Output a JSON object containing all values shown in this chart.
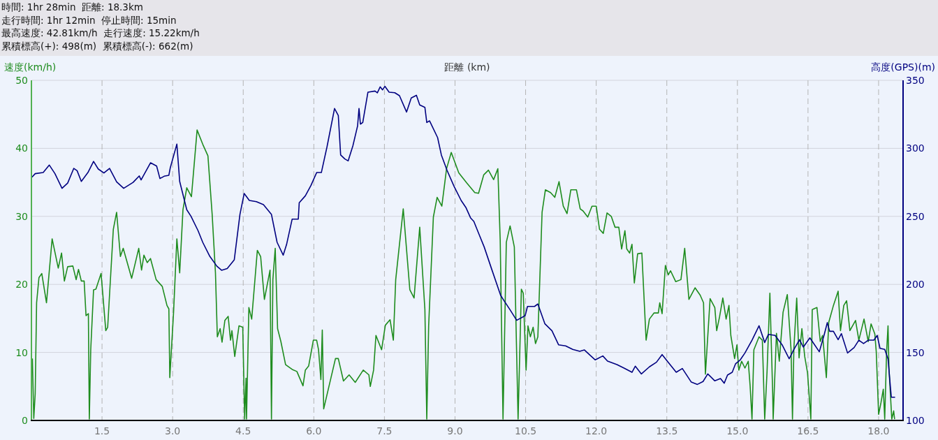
{
  "chart_data": {
    "type": "line",
    "annotations": [
      "時間: 1hr 28min  距離: 18.3km",
      "走行時間: 1hr 12min  停止時間: 15min",
      "最高速度: 42.81km/h  走行速度: 15.22km/h",
      "累積標高(+): 498(m)  累積標高(-): 662(m)"
    ],
    "xlabel": "距離 (km)",
    "ylabel": "速度(km/h)",
    "y2label": "高度(GPS)(m)",
    "xlim": [
      0,
      18.52
    ],
    "ylim": [
      0,
      50
    ],
    "y2lim": [
      100,
      350
    ],
    "xticks": [
      {
        "value": 1.5,
        "label": "1.5"
      },
      {
        "value": 3,
        "label": "3.0"
      },
      {
        "value": 4.5,
        "label": "4.5"
      },
      {
        "value": 6,
        "label": "6.0"
      },
      {
        "value": 7.5,
        "label": "7.5"
      },
      {
        "value": 9,
        "label": "9.0"
      },
      {
        "value": 10.5,
        "label": "10.5"
      },
      {
        "value": 12,
        "label": "12.0"
      },
      {
        "value": 13.5,
        "label": "13.5"
      },
      {
        "value": 15,
        "label": "15.0"
      },
      {
        "value": 16.5,
        "label": "16.5"
      },
      {
        "value": 18,
        "label": "18.0"
      }
    ],
    "yticks": [
      0,
      10,
      20,
      30,
      40,
      50
    ],
    "y2ticks": [
      100,
      150,
      200,
      250,
      300,
      350
    ],
    "grid": true,
    "series": [
      {
        "color": "#1e8c1e",
        "axis": "y",
        "x": [
          0.02,
          0.05,
          0.08,
          0.11,
          0.16,
          0.22,
          0.32,
          0.44,
          0.57,
          0.64,
          0.7,
          0.77,
          0.88,
          0.95,
          1.0,
          1.06,
          1.12,
          1.16,
          1.21,
          1.23,
          1.26,
          1.32,
          1.37,
          1.48,
          1.58,
          1.62,
          1.74,
          1.81,
          1.89,
          1.95,
          2.13,
          2.28,
          2.34,
          2.39,
          2.46,
          2.53,
          2.65,
          2.78,
          2.88,
          2.92,
          2.94,
          3.02,
          3.09,
          3.15,
          3.22,
          3.3,
          3.4,
          3.52,
          3.64,
          3.75,
          3.84,
          3.91,
          3.95,
          4.01,
          4.05,
          4.11,
          4.18,
          4.23,
          4.26,
          4.32,
          4.41,
          4.49,
          4.53,
          4.56,
          4.57,
          4.62,
          4.68,
          4.8,
          4.87,
          4.95,
          5.07,
          5.1,
          5.13,
          5.18,
          5.23,
          5.3,
          5.4,
          5.54,
          5.64,
          5.77,
          5.82,
          5.89,
          5.99,
          6.06,
          6.1,
          6.15,
          6.18,
          6.21,
          6.46,
          6.52,
          6.63,
          6.75,
          6.88,
          7.05,
          7.17,
          7.2,
          7.27,
          7.32,
          7.44,
          7.52,
          7.62,
          7.69,
          7.74,
          7.9,
          8.04,
          8.13,
          8.25,
          8.36,
          8.4,
          8.44,
          8.54,
          8.62,
          8.72,
          8.82,
          8.92,
          9.08,
          9.25,
          9.42,
          9.5,
          9.61,
          9.71,
          9.82,
          9.91,
          9.96,
          10.02,
          10.09,
          10.17,
          10.26,
          10.34,
          10.41,
          10.45,
          10.51,
          10.55,
          10.6,
          10.66,
          10.71,
          10.76,
          10.85,
          10.92,
          11.03,
          11.12,
          11.21,
          11.3,
          11.38,
          11.46,
          11.58,
          11.66,
          11.72,
          11.82,
          11.91,
          12.0,
          12.07,
          12.15,
          12.23,
          12.32,
          12.4,
          12.48,
          12.54,
          12.61,
          12.65,
          12.71,
          12.76,
          12.81,
          12.88,
          12.97,
          13.06,
          13.13,
          13.23,
          13.32,
          13.35,
          13.4,
          13.47,
          13.53,
          13.58,
          13.69,
          13.8,
          13.88,
          13.97,
          14.1,
          14.21,
          14.28,
          14.32,
          14.42,
          14.52,
          14.56,
          14.62,
          14.69,
          14.76,
          14.82,
          14.86,
          14.94,
          14.99,
          15.03,
          15.09,
          15.16,
          15.23,
          15.27,
          15.31,
          15.35,
          15.46,
          15.53,
          15.58,
          15.63,
          15.69,
          15.75,
          15.76,
          15.83,
          15.89,
          15.97,
          16.06,
          16.14,
          16.17,
          16.2,
          16.26,
          16.31,
          16.37,
          16.43,
          16.49,
          16.56,
          16.59,
          16.69,
          16.76,
          16.81,
          16.89,
          16.94,
          17.04,
          17.14,
          17.19,
          17.26,
          17.32,
          17.39,
          17.51,
          17.58,
          17.69,
          17.78,
          17.84,
          17.92,
          17.95,
          18.0,
          18.05,
          18.1,
          18.13,
          18.17,
          18.2,
          18.22,
          18.28,
          18.32,
          18.34
        ],
        "values": [
          9.1,
          0.3,
          3.9,
          17.3,
          21.0,
          21.6,
          17.3,
          26.7,
          22.4,
          24.6,
          20.5,
          22.6,
          22.7,
          20.7,
          22.2,
          20.5,
          20.5,
          15.4,
          15.7,
          0.2,
          10.4,
          19.2,
          19.3,
          21.6,
          13.2,
          13.7,
          28.1,
          30.6,
          24.1,
          25.3,
          20.9,
          25.3,
          22.1,
          24.3,
          23.2,
          23.8,
          20.7,
          19.7,
          16.9,
          16.4,
          6.3,
          15.9,
          26.7,
          21.7,
          31.0,
          34.2,
          32.9,
          42.7,
          40.6,
          38.9,
          30.3,
          21.7,
          12.3,
          13.5,
          11.5,
          14.7,
          15.3,
          11.8,
          13.2,
          9.4,
          13.9,
          13.7,
          0.2,
          6.2,
          0.2,
          16.6,
          14.9,
          25.0,
          24.1,
          17.8,
          22.1,
          0.2,
          20.7,
          25.3,
          13.5,
          11.6,
          8.2,
          7.5,
          7.2,
          5.1,
          7.4,
          8.0,
          11.8,
          11.8,
          10.4,
          6.0,
          13.3,
          1.7,
          9.1,
          9.1,
          5.8,
          6.7,
          5.6,
          7.4,
          6.7,
          5.0,
          7.4,
          12.5,
          10.4,
          14.0,
          14.8,
          11.8,
          20.7,
          31.1,
          19.2,
          18.0,
          28.4,
          16.3,
          0.2,
          13.9,
          29.9,
          32.8,
          31.5,
          37.0,
          39.4,
          36.4,
          34.9,
          33.5,
          33.4,
          36.1,
          36.8,
          35.4,
          37.0,
          26.5,
          0.2,
          26.2,
          28.6,
          25.5,
          0.2,
          19.3,
          18.7,
          7.4,
          13.9,
          12.3,
          13.7,
          11.3,
          12.3,
          30.6,
          33.9,
          33.5,
          32.8,
          35.1,
          31.5,
          30.4,
          33.9,
          33.9,
          31.1,
          30.8,
          29.9,
          31.5,
          31.5,
          28.1,
          27.5,
          30.5,
          30.0,
          28.4,
          28.4,
          25.2,
          27.9,
          25.2,
          24.6,
          25.9,
          20.2,
          24.5,
          24.6,
          11.8,
          14.9,
          15.8,
          15.8,
          17.3,
          15.7,
          22.8,
          21.4,
          22.0,
          20.4,
          20.7,
          25.3,
          17.8,
          19.5,
          18.4,
          17.3,
          6.8,
          17.9,
          16.6,
          13.2,
          15.2,
          18.0,
          14.9,
          16.9,
          12.5,
          9.1,
          11.1,
          7.4,
          8.7,
          7.7,
          8.7,
          5.1,
          0.2,
          10.4,
          12.3,
          11.8,
          0.2,
          7.2,
          18.7,
          3.9,
          0.2,
          12.8,
          8.7,
          15.9,
          18.5,
          10.4,
          0.2,
          10.6,
          18.0,
          9.2,
          13.5,
          9.4,
          7.0,
          0.2,
          16.3,
          16.6,
          11.6,
          12.5,
          6.3,
          14.4,
          16.9,
          19.0,
          13.2,
          16.9,
          17.6,
          13.2,
          14.7,
          11.8,
          14.9,
          11.6,
          14.2,
          12.7,
          10.1,
          0.9,
          2.6,
          4.6,
          0.2,
          10.1,
          13.9,
          7.7,
          0.2,
          1.4,
          0.2
        ]
      },
      {
        "color": "#000080",
        "axis": "y2",
        "x": [
          0.01,
          0.08,
          0.25,
          0.38,
          0.5,
          0.65,
          0.77,
          0.9,
          0.97,
          1.06,
          1.2,
          1.32,
          1.42,
          1.54,
          1.66,
          1.81,
          1.96,
          2.16,
          2.29,
          2.33,
          2.53,
          2.66,
          2.73,
          2.82,
          2.92,
          2.95,
          3.09,
          3.15,
          3.3,
          3.39,
          3.54,
          3.64,
          3.79,
          3.94,
          4.04,
          4.16,
          4.31,
          4.43,
          4.52,
          4.63,
          4.78,
          4.93,
          5.1,
          5.22,
          5.35,
          5.42,
          5.54,
          5.67,
          5.69,
          5.82,
          5.94,
          6.06,
          6.16,
          6.28,
          6.44,
          6.52,
          6.57,
          6.66,
          6.73,
          6.83,
          6.93,
          6.96,
          6.99,
          7.04,
          7.15,
          7.3,
          7.35,
          7.41,
          7.46,
          7.51,
          7.6,
          7.72,
          7.82,
          7.97,
          8.07,
          8.18,
          8.25,
          8.36,
          8.4,
          8.46,
          8.63,
          8.71,
          8.83,
          8.98,
          9.13,
          9.23,
          9.33,
          9.4,
          9.5,
          9.62,
          9.77,
          9.97,
          10.04,
          10.17,
          10.31,
          10.49,
          10.54,
          10.69,
          10.76,
          10.91,
          11.06,
          11.2,
          11.35,
          11.5,
          11.65,
          11.75,
          11.87,
          11.98,
          12.14,
          12.24,
          12.44,
          12.59,
          12.76,
          12.83,
          12.96,
          13.13,
          13.28,
          13.4,
          13.53,
          13.7,
          13.83,
          14.02,
          14.15,
          14.27,
          14.37,
          14.52,
          14.64,
          14.72,
          14.79,
          14.89,
          14.96,
          15.06,
          15.16,
          15.31,
          15.46,
          15.58,
          15.66,
          15.8,
          15.95,
          16.1,
          16.2,
          16.32,
          16.4,
          16.54,
          16.74,
          16.84,
          16.91,
          16.96,
          17.04,
          17.14,
          17.21,
          17.34,
          17.48,
          17.58,
          17.68,
          17.78,
          17.9,
          17.97,
          18.03,
          18.13,
          18.2,
          18.25,
          18.27,
          18.35
        ],
        "values": [
          278.8,
          281.4,
          282.2,
          287.7,
          281.4,
          270.6,
          274.5,
          285.3,
          283.6,
          275.7,
          282.2,
          290.4,
          284.8,
          281.9,
          285.3,
          275.4,
          270.6,
          275.0,
          279.7,
          276.8,
          289.4,
          287.0,
          277.8,
          279.5,
          280.2,
          285.7,
          303.1,
          275.7,
          254.9,
          250.1,
          239.5,
          230.9,
          220.6,
          213.4,
          210.4,
          211.7,
          218.1,
          251.4,
          266.8,
          261.7,
          260.8,
          258.6,
          251.4,
          230.9,
          221.5,
          229.2,
          248.0,
          248.0,
          260.0,
          265.1,
          272.8,
          282.2,
          282.2,
          301.1,
          329.3,
          324.2,
          295.1,
          292.2,
          290.8,
          301.9,
          316.5,
          329.3,
          317.8,
          319.0,
          341.3,
          342.1,
          340.8,
          345.2,
          343.0,
          345.6,
          341.3,
          340.9,
          338.7,
          326.7,
          337.0,
          339.0,
          331.9,
          330.1,
          319.0,
          320.2,
          307.9,
          295.1,
          283.9,
          272.0,
          261.7,
          256.6,
          248.9,
          246.3,
          237.7,
          227.5,
          212.1,
          191.9,
          188.1,
          181.3,
          173.6,
          177.0,
          183.8,
          183.8,
          185.6,
          171.0,
          165.9,
          155.6,
          154.8,
          152.2,
          150.8,
          151.8,
          147.9,
          144.5,
          147.4,
          143.6,
          141.1,
          138.5,
          135.4,
          139.9,
          134.2,
          139.4,
          142.8,
          148.4,
          142.8,
          135.4,
          138.2,
          128.2,
          126.5,
          128.6,
          134.2,
          129.1,
          130.8,
          127.4,
          133.4,
          135.4,
          141.6,
          144.5,
          149.6,
          159.0,
          169.6,
          157.3,
          163.3,
          162.5,
          155.6,
          145.3,
          152.2,
          159.4,
          153.9,
          160.7,
          150.5,
          162.5,
          171.9,
          165.5,
          165.5,
          159.4,
          163.8,
          149.6,
          153.6,
          159.0,
          156.5,
          159.0,
          159.0,
          162.5,
          153.0,
          152.2,
          145.3,
          124.8,
          117.1,
          117.1
        ]
      }
    ]
  }
}
